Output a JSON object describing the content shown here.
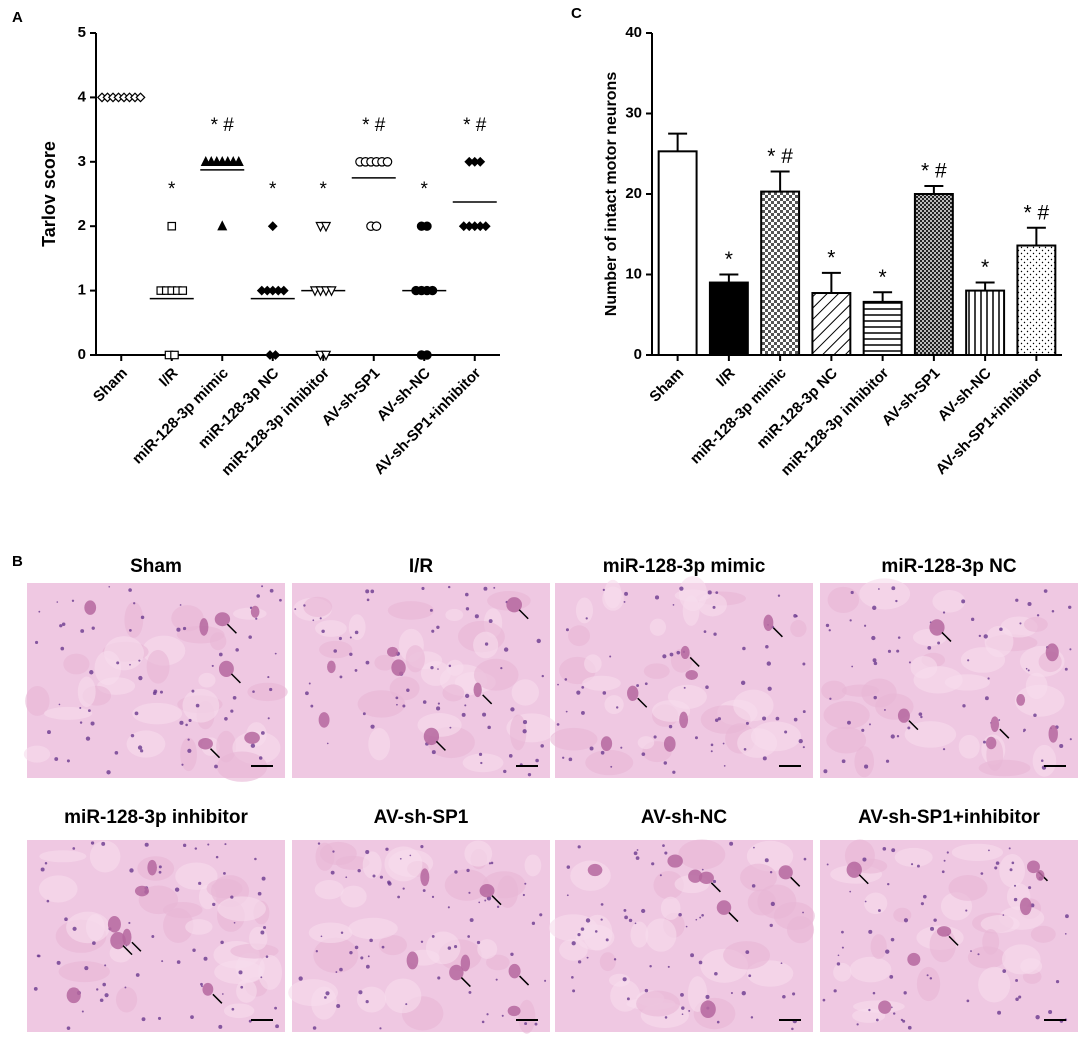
{
  "chart_data": [
    {
      "type": "dotplot",
      "panel": "A",
      "y_label": "Tarlov score",
      "categories": [
        "Sham",
        "I/R",
        "miR-128-3p mimic",
        "miR-128-3p NC",
        "miR-128-3p inhibitor",
        "AV-sh-SP1",
        "AV-sh-NC",
        "AV-sh-SP1+inhibitor"
      ],
      "points": [
        [
          4,
          4,
          4,
          4,
          4,
          4,
          4,
          4
        ],
        [
          2,
          1,
          1,
          1,
          1,
          1,
          0,
          0
        ],
        [
          3,
          3,
          3,
          3,
          3,
          3,
          3,
          2
        ],
        [
          2,
          1,
          1,
          1,
          1,
          1,
          0,
          0
        ],
        [
          2,
          2,
          1,
          1,
          1,
          1,
          0,
          0
        ],
        [
          3,
          3,
          3,
          3,
          3,
          3,
          2,
          2
        ],
        [
          2,
          2,
          1,
          1,
          1,
          1,
          0,
          0
        ],
        [
          3,
          3,
          3,
          2,
          2,
          2,
          2,
          2
        ]
      ],
      "means": [
        4,
        0.875,
        2.875,
        0.875,
        1,
        2.75,
        1,
        2.375
      ],
      "markers": [
        "diamond-open",
        "square-open",
        "triangle",
        "diamond",
        "triangle-down-open",
        "circle-open",
        "circle",
        "diamond"
      ],
      "annotations": [
        null,
        "*",
        "* #",
        "*",
        "*",
        "* #",
        "*",
        "* #"
      ],
      "ylim": [
        0,
        5
      ],
      "yticks": [
        0,
        1,
        2,
        3,
        4,
        5
      ]
    },
    {
      "type": "bar",
      "panel": "C",
      "y_label": "Number of intact motor neurons",
      "categories": [
        "Sham",
        "I/R",
        "miR-128-3p mimic",
        "miR-128-3p NC",
        "miR-128-3p inhibitor",
        "AV-sh-SP1",
        "AV-sh-NC",
        "AV-sh-SP1+inhibitor"
      ],
      "values": [
        25.3,
        9.0,
        20.3,
        7.7,
        6.6,
        20.0,
        8.0,
        13.6
      ],
      "errors": [
        2.2,
        1.0,
        2.5,
        2.5,
        1.2,
        1.0,
        1.0,
        2.2
      ],
      "patterns": [
        "none",
        "solid",
        "checker",
        "diagonal",
        "horizontal",
        "checker-dense",
        "vertical",
        "dots"
      ],
      "annotations": [
        null,
        "*",
        "* #",
        "*",
        "*",
        "* #",
        "*",
        "* #"
      ],
      "ylim": [
        0,
        40
      ],
      "yticks": [
        0,
        10,
        20,
        30,
        40
      ]
    }
  ],
  "histology": {
    "panel": "B",
    "titles": [
      "Sham",
      "I/R",
      "miR-128-3p mimic",
      "miR-128-3p NC",
      "miR-128-3p inhibitor",
      "AV-sh-SP1",
      "AV-sh-NC",
      "AV-sh-SP1+inhibitor"
    ]
  }
}
